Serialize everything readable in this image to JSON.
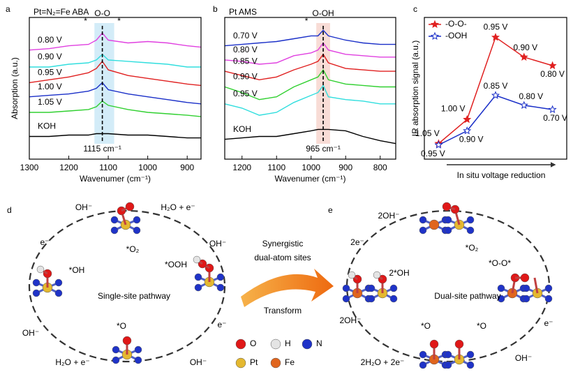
{
  "chart_data": [
    {
      "panel": "a",
      "type": "line",
      "annotation": "Pt=N₂=Fe ABA",
      "x_label": "Wavenumer (cm⁻¹)",
      "y_label": "Absorption (a.u.)",
      "x": [
        1300,
        1250,
        1200,
        1150,
        1130,
        1115,
        1100,
        1050,
        1000,
        950,
        900,
        865
      ],
      "xlim": [
        1300,
        865
      ],
      "xticks": [
        1300,
        1200,
        1100,
        1000,
        900
      ],
      "ylim": [
        0,
        10
      ],
      "peak": {
        "value": 1115,
        "label": "1115 cm⁻¹",
        "band": [
          1135,
          1085
        ],
        "band_color": "#d3ecf8",
        "text": "O-O",
        "marks": [
          "*",
          "*"
        ]
      },
      "series": [
        {
          "name": "0.80 V",
          "color": "#e040e0",
          "values": [
            7.7,
            7.8,
            8.0,
            8.1,
            8.4,
            8.9,
            8.4,
            8.2,
            8.3,
            8.2,
            8.0,
            7.9
          ]
        },
        {
          "name": "0.90 V",
          "color": "#30dede",
          "values": [
            6.5,
            6.5,
            6.7,
            6.8,
            7.0,
            7.4,
            7.0,
            6.9,
            6.8,
            6.7,
            6.5,
            6.5
          ]
        },
        {
          "name": "0.95 V",
          "color": "#e02020",
          "values": [
            5.4,
            5.6,
            5.8,
            6.1,
            6.4,
            6.9,
            6.3,
            5.9,
            5.7,
            5.5,
            5.3,
            5.2
          ]
        },
        {
          "name": "1.00 V",
          "color": "#1a2fc8",
          "values": [
            4.4,
            4.5,
            4.6,
            4.8,
            5.0,
            5.4,
            4.9,
            4.6,
            4.4,
            4.2,
            4.0,
            3.9
          ]
        },
        {
          "name": "1.05 V",
          "color": "#30d030",
          "values": [
            3.3,
            3.3,
            3.4,
            3.5,
            3.7,
            4.1,
            3.8,
            3.5,
            3.3,
            3.2,
            3.1,
            3.0
          ]
        },
        {
          "name": "KOH",
          "color": "#000000",
          "values": [
            1.6,
            1.6,
            1.7,
            1.7,
            1.8,
            1.8,
            1.8,
            1.7,
            1.7,
            1.6,
            1.5,
            1.5
          ]
        }
      ]
    },
    {
      "panel": "b",
      "type": "line",
      "annotation": "Pt AMS",
      "x_label": "Wavenumer (cm⁻¹)",
      "x": [
        1250,
        1200,
        1150,
        1100,
        1050,
        1000,
        980,
        965,
        950,
        900,
        850,
        800,
        755
      ],
      "xlim": [
        1250,
        755
      ],
      "xticks": [
        1200,
        1100,
        1000,
        900,
        800
      ],
      "ylim": [
        0,
        10
      ],
      "peak": {
        "value": 965,
        "label": "965 cm⁻¹",
        "band": [
          985,
          945
        ],
        "band_color": "#f8dcd6",
        "text": "O-OH",
        "marks": [
          "*"
        ]
      },
      "series": [
        {
          "name": "0.70 V",
          "color": "#1a2fc8",
          "values": [
            8.0,
            8.1,
            8.2,
            8.3,
            8.5,
            8.7,
            8.7,
            9.1,
            8.7,
            8.4,
            8.2,
            8.1,
            8.1
          ]
        },
        {
          "name": "0.80 V",
          "color": "#e040e0",
          "values": [
            7.0,
            6.9,
            6.7,
            6.8,
            7.3,
            7.5,
            7.7,
            8.2,
            7.7,
            7.4,
            7.3,
            7.2,
            7.2
          ]
        },
        {
          "name": "0.85 V",
          "color": "#e02020",
          "values": [
            6.2,
            5.9,
            5.6,
            5.8,
            6.3,
            6.7,
            6.9,
            7.4,
            6.8,
            6.4,
            6.3,
            6.2,
            6.2
          ]
        },
        {
          "name": "0.90 V",
          "color": "#30d030",
          "values": [
            5.1,
            4.7,
            4.2,
            4.4,
            5.1,
            5.6,
            5.8,
            6.3,
            5.6,
            5.3,
            5.2,
            5.1,
            5.1
          ]
        },
        {
          "name": "0.95 V",
          "color": "#30dede",
          "values": [
            3.9,
            3.6,
            3.1,
            3.3,
            4.0,
            4.5,
            4.7,
            5.2,
            4.4,
            4.2,
            4.1,
            3.9,
            3.9
          ]
        },
        {
          "name": "KOH",
          "color": "#000000",
          "values": [
            1.4,
            1.5,
            1.6,
            1.6,
            1.8,
            2.0,
            2.1,
            2.1,
            2.1,
            2.0,
            1.6,
            1.3,
            1.1
          ]
        }
      ]
    },
    {
      "panel": "c",
      "type": "star-line",
      "x_label": "In situ voltage reduction",
      "y_label": "IR absorption signal (a.u.)",
      "categories": [
        null,
        null,
        null,
        null,
        null
      ],
      "ylim": [
        0,
        10
      ],
      "legend": "top-left",
      "series": [
        {
          "name": "-O-O-",
          "color": "#e02020",
          "values": [
            1.1,
            2.8,
            8.6,
            7.2,
            6.6
          ],
          "point_labels": [
            "1.05 V",
            "1.00 V",
            "0.95 V",
            "0.90 V",
            "0.80 V"
          ]
        },
        {
          "name": "-OOH",
          "color": "#1a2fc8",
          "values": [
            1.0,
            2.0,
            4.5,
            3.8,
            3.5
          ],
          "point_labels": [
            "0.95 V",
            "0.90 V",
            "0.85 V",
            "0.80 V",
            "0.70 V"
          ]
        }
      ]
    }
  ],
  "diagram": {
    "d": {
      "panel": "d",
      "labels": [
        "OH⁻",
        "H₂O + e⁻",
        "e⁻",
        "*O₂",
        "OH⁻",
        "*OH",
        "*OOH",
        "Single-site pathway",
        "*O",
        "OH⁻",
        "e⁻",
        "H₂O + e⁻",
        "OH⁻"
      ]
    },
    "e": {
      "panel": "e",
      "labels": [
        "2OH⁻",
        "2e⁻",
        "*O₂",
        "2*OH",
        "*O-O*",
        "Dual-site pathway",
        "2OH⁻",
        "*O",
        "*O",
        "e⁻",
        "2H₂O + 2e⁻",
        "OH⁻"
      ]
    },
    "center": {
      "lines": [
        "Synergistic",
        "dual-atom sites"
      ],
      "bottom": "Transform"
    },
    "legend": [
      "O",
      "H",
      "N",
      "Pt",
      "Fe"
    ]
  }
}
